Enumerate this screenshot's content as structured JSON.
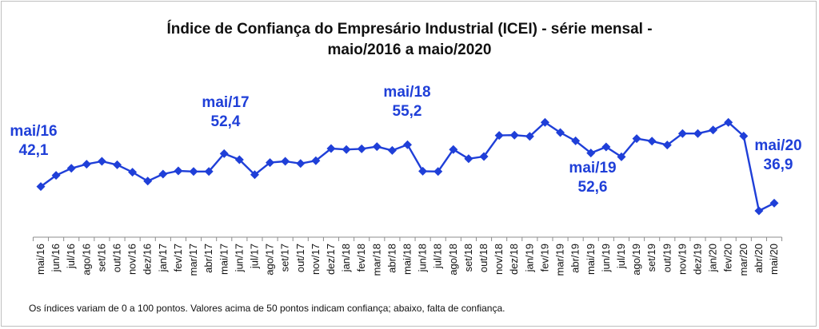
{
  "chart_data": {
    "type": "line",
    "title": "Índice de Confiança do Empresário Industrial (ICEI) - série mensal - maio/2016 a maio/2020",
    "title_line1": "Índice de Confiança do Empresário Industrial (ICEI) - série mensal -",
    "title_line2": "maio/2016 a maio/2020",
    "xlabel": "",
    "ylabel": "",
    "ylim": [
      30,
      75
    ],
    "y_axis_visible": false,
    "grid": false,
    "legend": "none",
    "series_color": "#1f3fd8",
    "categories": [
      "mai/16",
      "jun/16",
      "jul/16",
      "ago/16",
      "set/16",
      "out/16",
      "nov/16",
      "dez/16",
      "jan/17",
      "fev/17",
      "mar/17",
      "abr/17",
      "mai/17",
      "jun/17",
      "jul/17",
      "ago/17",
      "set/17",
      "out/17",
      "nov/17",
      "dez/17",
      "jan/18",
      "fev/18",
      "mar/18",
      "abr/18",
      "mai/18",
      "jun/18",
      "jul/18",
      "ago/18",
      "set/18",
      "out/18",
      "nov/18",
      "dez/18",
      "jan/19",
      "fev/19",
      "mar/19",
      "abr/19",
      "mai/19",
      "jun/19",
      "jul/19",
      "ago/19",
      "set/19",
      "out/19",
      "nov/19",
      "dez/19",
      "jan/20",
      "fev/20",
      "mar/20",
      "abr/20",
      "mai/20"
    ],
    "series": [
      {
        "values": [
          42.1,
          45.6,
          47.8,
          49.1,
          50.0,
          48.9,
          46.6,
          43.8,
          46.0,
          47.0,
          46.8,
          46.8,
          52.4,
          50.5,
          45.8,
          49.6,
          50.0,
          49.3,
          50.2,
          54.0,
          53.7,
          53.9,
          54.6,
          53.4,
          55.2,
          46.9,
          46.8,
          53.7,
          50.8,
          51.5,
          58.1,
          58.2,
          57.8,
          62.2,
          59.0,
          56.4,
          52.6,
          54.5,
          51.4,
          57.1,
          56.3,
          55.1,
          58.7,
          58.7,
          59.8,
          62.2,
          57.9,
          34.5,
          36.9
        ]
      }
    ],
    "annotations": [
      {
        "index": 0,
        "label": "mai/16",
        "value_text": "42,1"
      },
      {
        "index": 12,
        "label": "mai/17",
        "value_text": "52,4"
      },
      {
        "index": 24,
        "label": "mai/18",
        "value_text": "55,2"
      },
      {
        "index": 36,
        "label": "mai/19",
        "value_text": "52,6"
      },
      {
        "index": 48,
        "label": "mai/20",
        "value_text": "36,9"
      }
    ],
    "footnote": "Os índices variam de 0 a 100 pontos. Valores acima de 50 pontos indicam confiança; abaixo, falta de confiança."
  }
}
